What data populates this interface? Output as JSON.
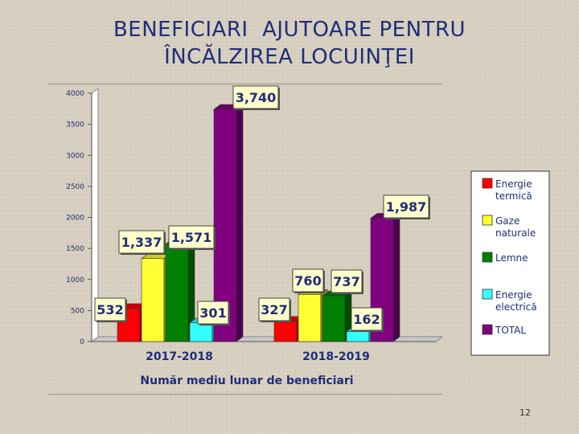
{
  "title": {
    "line1": "BENEFICIARI  AJUTOARE PENTRU",
    "line2": "ÎNCĂLZIREA LOCUINŢEI"
  },
  "page_number": "12",
  "chart_data": {
    "type": "bar",
    "title": "",
    "xlabel": "Număr mediu lunar de beneficiari",
    "ylabel": "",
    "ylim": [
      0,
      4000
    ],
    "yticks": [
      "0",
      "500",
      "1000",
      "1500",
      "2000",
      "2500",
      "3000",
      "3500",
      "4000"
    ],
    "categories": [
      "2017-2018",
      "2018-2019"
    ],
    "legend_position": "right",
    "series": [
      {
        "name": "Energie termică",
        "color": "#ff0000",
        "values": [
          532,
          327
        ],
        "labels": [
          "532",
          "327"
        ]
      },
      {
        "name": "Gaze naturale",
        "color": "#ffff33",
        "values": [
          1337,
          760
        ],
        "labels": [
          "1,337",
          "760"
        ]
      },
      {
        "name": "Lemne",
        "color": "#008000",
        "values": [
          1571,
          737
        ],
        "labels": [
          "1,571",
          "737"
        ]
      },
      {
        "name": "Energie electrică",
        "color": "#33ffff",
        "values": [
          301,
          162
        ],
        "labels": [
          "301",
          "162"
        ]
      },
      {
        "name": "TOTAL",
        "color": "#800080",
        "values": [
          3740,
          1987
        ],
        "labels": [
          "3,740",
          "1,987"
        ]
      }
    ]
  }
}
